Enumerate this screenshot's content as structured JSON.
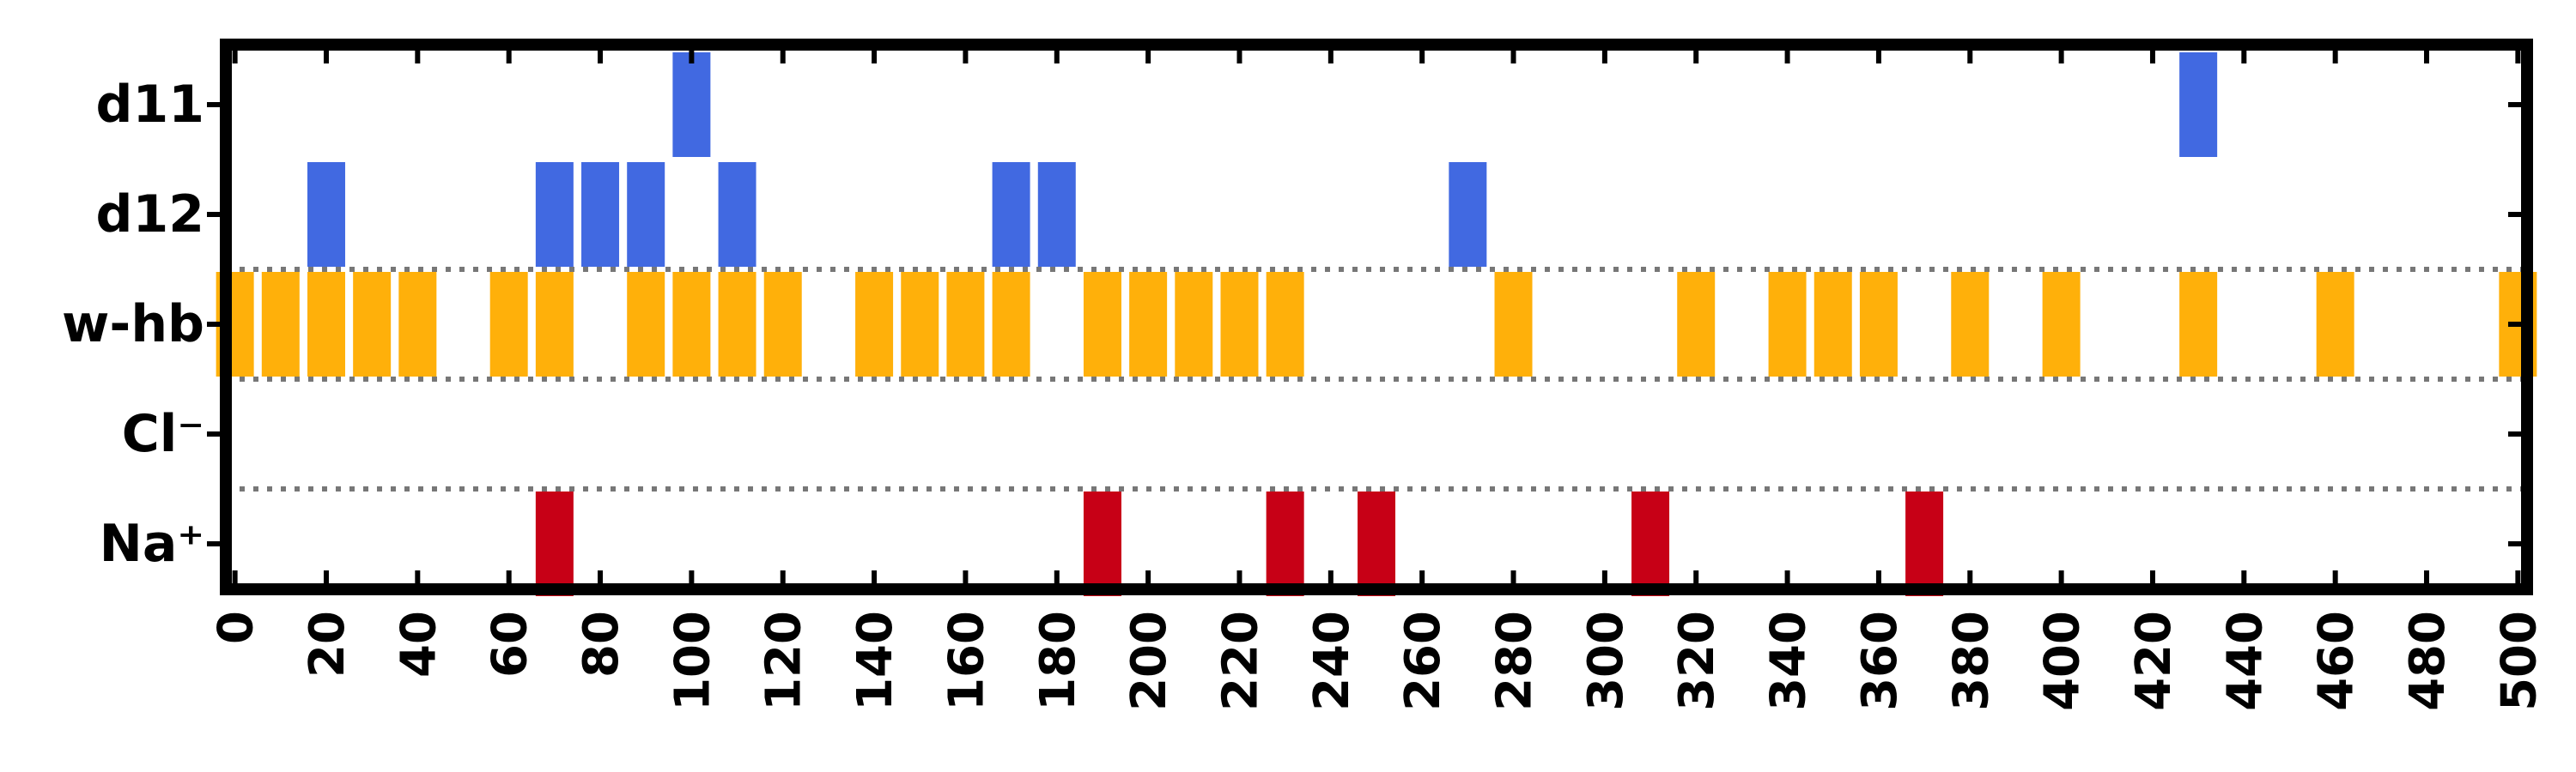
{
  "chart_data": {
    "type": "event-raster",
    "xlim": [
      -2,
      502
    ],
    "xticks": [
      0,
      20,
      40,
      60,
      80,
      100,
      120,
      140,
      160,
      180,
      200,
      220,
      240,
      260,
      280,
      300,
      320,
      340,
      360,
      380,
      400,
      420,
      440,
      460,
      480,
      500
    ],
    "xlabel": "",
    "ylabel": "",
    "grid": false,
    "rows": [
      {
        "label": "d11",
        "color": "#4169E1",
        "events": [
          100,
          430
        ]
      },
      {
        "label": "d12",
        "color": "#4169E1",
        "events": [
          20,
          70,
          80,
          90,
          110,
          170,
          180,
          270
        ]
      },
      {
        "label": "w-hb",
        "color": "#FFB00A",
        "events": [
          0,
          10,
          20,
          30,
          40,
          60,
          70,
          90,
          100,
          110,
          120,
          140,
          150,
          160,
          170,
          190,
          200,
          210,
          220,
          230,
          280,
          320,
          340,
          350,
          360,
          380,
          400,
          430,
          460,
          500
        ]
      },
      {
        "label": "Cl⁻",
        "color": "#C70016",
        "events": []
      },
      {
        "label": "Na⁺",
        "color": "#C70016",
        "events": [
          70,
          190,
          230,
          250,
          310,
          370
        ]
      }
    ],
    "dotted_separators_between": [
      [
        "d12",
        "w-hb"
      ],
      [
        "w-hb",
        "Cl⁻"
      ],
      [
        "Cl⁻",
        "Na⁺"
      ]
    ]
  }
}
